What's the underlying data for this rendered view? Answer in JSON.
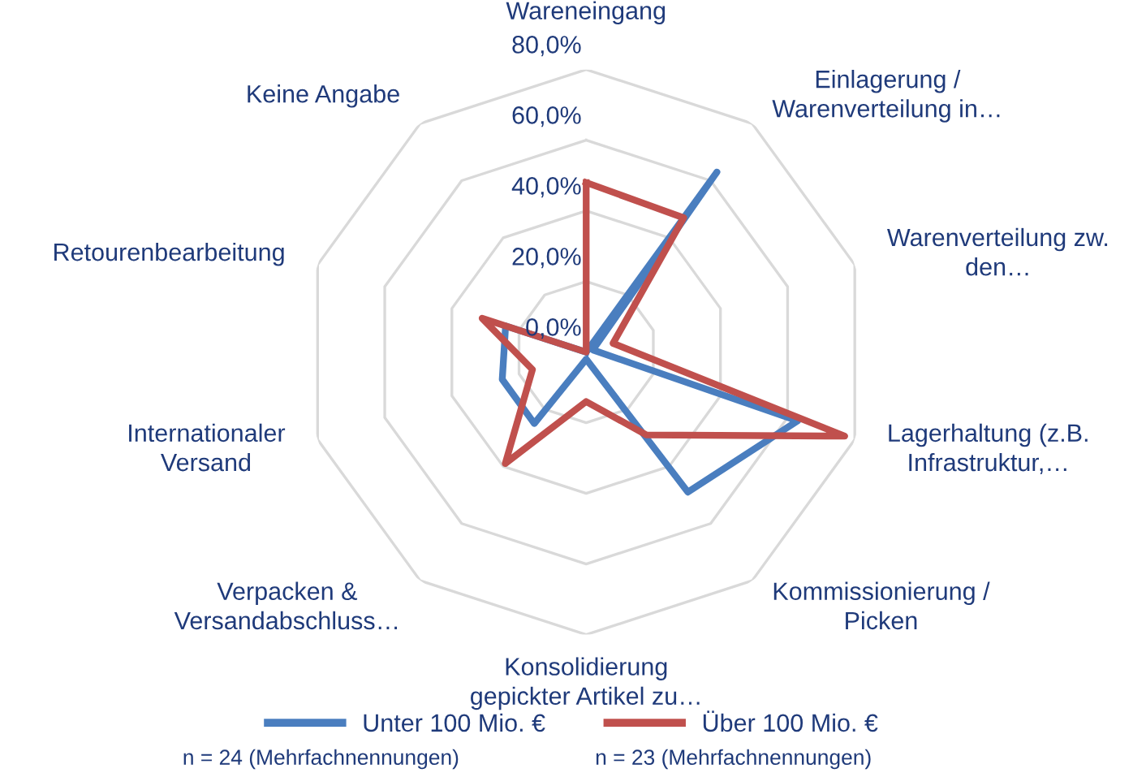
{
  "chart_data": {
    "type": "radar",
    "categories": [
      "Wareneingang",
      "Einlagerung /\nWarenverteilung in…",
      "Warenverteilung zw.\nden…",
      "Lagerhaltung (z.B.\nInfrastruktur,…",
      "Kommissionierung /\nPicken",
      "Konsolidierung\ngepickter Artikel zu…",
      "Verpacken &\nVersandabschluss…",
      "Internationaler\nVersand",
      "Retourenbearbeitung",
      "Keine Angabe"
    ],
    "series": [
      {
        "name": "Unter 100 Mio. €",
        "color": "#4a7ebf",
        "values": [
          0,
          63,
          2,
          63,
          49,
          2,
          25,
          25,
          24,
          0
        ]
      },
      {
        "name": "Über 100 Mio. €",
        "color": "#c0504d",
        "values": [
          48,
          47,
          8,
          77,
          29,
          14,
          39,
          16,
          31,
          0
        ]
      }
    ],
    "ylim": [
      0,
      80
    ],
    "yticks": [
      {
        "value": 0,
        "label": "0,0%"
      },
      {
        "value": 20,
        "label": "20,0%"
      },
      {
        "value": 40,
        "label": "40,0%"
      },
      {
        "value": 60,
        "label": "60,0%"
      },
      {
        "value": 80,
        "label": "80,0%"
      }
    ],
    "grid": true,
    "legend": "bottom",
    "annotations": [
      "n = 24 (Mehrfachnennungen)",
      "n = 23 (Mehrfachnennungen)"
    ]
  }
}
